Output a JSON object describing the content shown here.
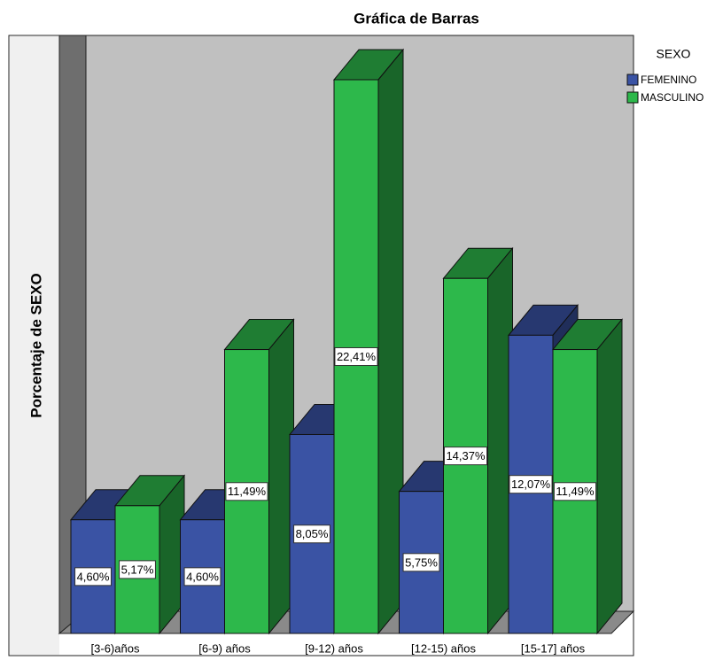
{
  "chart_data": {
    "type": "bar3d",
    "title": "Gráfica de Barras",
    "ylabel": "Porcentaje de SEXO",
    "legend_title": "SEXO",
    "categories": [
      "[3-6)años",
      "[6-9) años",
      "[9-12) años",
      "[12-15) años",
      "[15-17] años"
    ],
    "series": [
      {
        "name": "FEMENINO",
        "color": "#3a53a4",
        "values": [
          4.6,
          4.6,
          8.05,
          5.75,
          12.07
        ],
        "value_labels": [
          "4,60%",
          "4,60%",
          "8,05%",
          "5,75%",
          "12,07%"
        ]
      },
      {
        "name": "MASCULINO",
        "color": "#2db84b",
        "values": [
          5.17,
          11.49,
          22.41,
          14.37,
          11.49
        ],
        "value_labels": [
          "5,17%",
          "11,49%",
          "22,41%",
          "14,37%",
          "11,49%"
        ]
      }
    ]
  }
}
